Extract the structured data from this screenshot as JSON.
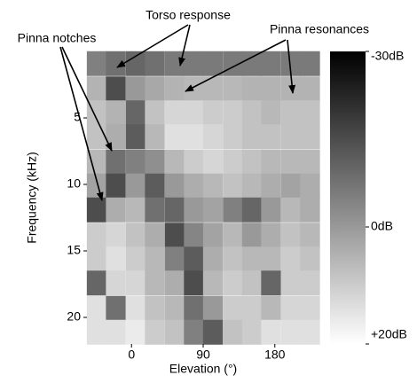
{
  "chart_data": {
    "type": "heatmap",
    "xlabel": "Elevation (°)",
    "ylabel": "Frequency (kHz)",
    "x": [
      -44,
      -20,
      5,
      29,
      54,
      78,
      102,
      127,
      151,
      175,
      200,
      224
    ],
    "y": [
      0.9,
      2.8,
      4.6,
      6.4,
      8.3,
      10.1,
      11.9,
      13.8,
      15.6,
      17.4,
      19.3,
      21.1
    ],
    "xlim": [
      -56,
      236
    ],
    "ylim": [
      0,
      22
    ],
    "xticks": [
      0,
      90,
      180
    ],
    "yticks": [
      5,
      10,
      15,
      20
    ],
    "z": [
      [
        -5,
        -8,
        -10,
        -8,
        -6,
        -6,
        -6,
        -6,
        -6,
        -6,
        -6,
        -6
      ],
      [
        5,
        -15,
        0,
        3,
        5,
        6,
        6,
        6,
        5,
        5,
        5,
        5
      ],
      [
        8,
        5,
        -10,
        8,
        12,
        12,
        10,
        10,
        8,
        6,
        8,
        8
      ],
      [
        8,
        4,
        -12,
        6,
        14,
        14,
        12,
        10,
        8,
        8,
        8,
        8
      ],
      [
        6,
        -8,
        -5,
        -2,
        6,
        10,
        12,
        10,
        8,
        6,
        6,
        6
      ],
      [
        2,
        -15,
        0,
        -12,
        0,
        4,
        6,
        8,
        6,
        4,
        2,
        4
      ],
      [
        -15,
        4,
        6,
        -8,
        -10,
        0,
        2,
        -5,
        -10,
        0,
        6,
        4
      ],
      [
        10,
        12,
        8,
        4,
        -15,
        -4,
        2,
        6,
        0,
        4,
        8,
        6
      ],
      [
        10,
        14,
        10,
        6,
        -5,
        -12,
        4,
        8,
        6,
        6,
        10,
        8
      ],
      [
        -10,
        12,
        12,
        6,
        4,
        -15,
        6,
        10,
        8,
        -10,
        10,
        10
      ],
      [
        14,
        -8,
        14,
        8,
        6,
        -8,
        0,
        10,
        10,
        6,
        12,
        12
      ],
      [
        14,
        14,
        16,
        10,
        8,
        -5,
        -12,
        8,
        10,
        14,
        14,
        14
      ]
    ],
    "clim": [
      -30,
      20
    ],
    "cticks": [
      {
        "value": -30,
        "label": "-30dB"
      },
      {
        "value": 0,
        "label": "0dB"
      },
      {
        "value": 20,
        "label": "+20dB"
      }
    ],
    "annotations": [
      "Torso response",
      "Pinna notches",
      "Pinna resonances"
    ]
  }
}
